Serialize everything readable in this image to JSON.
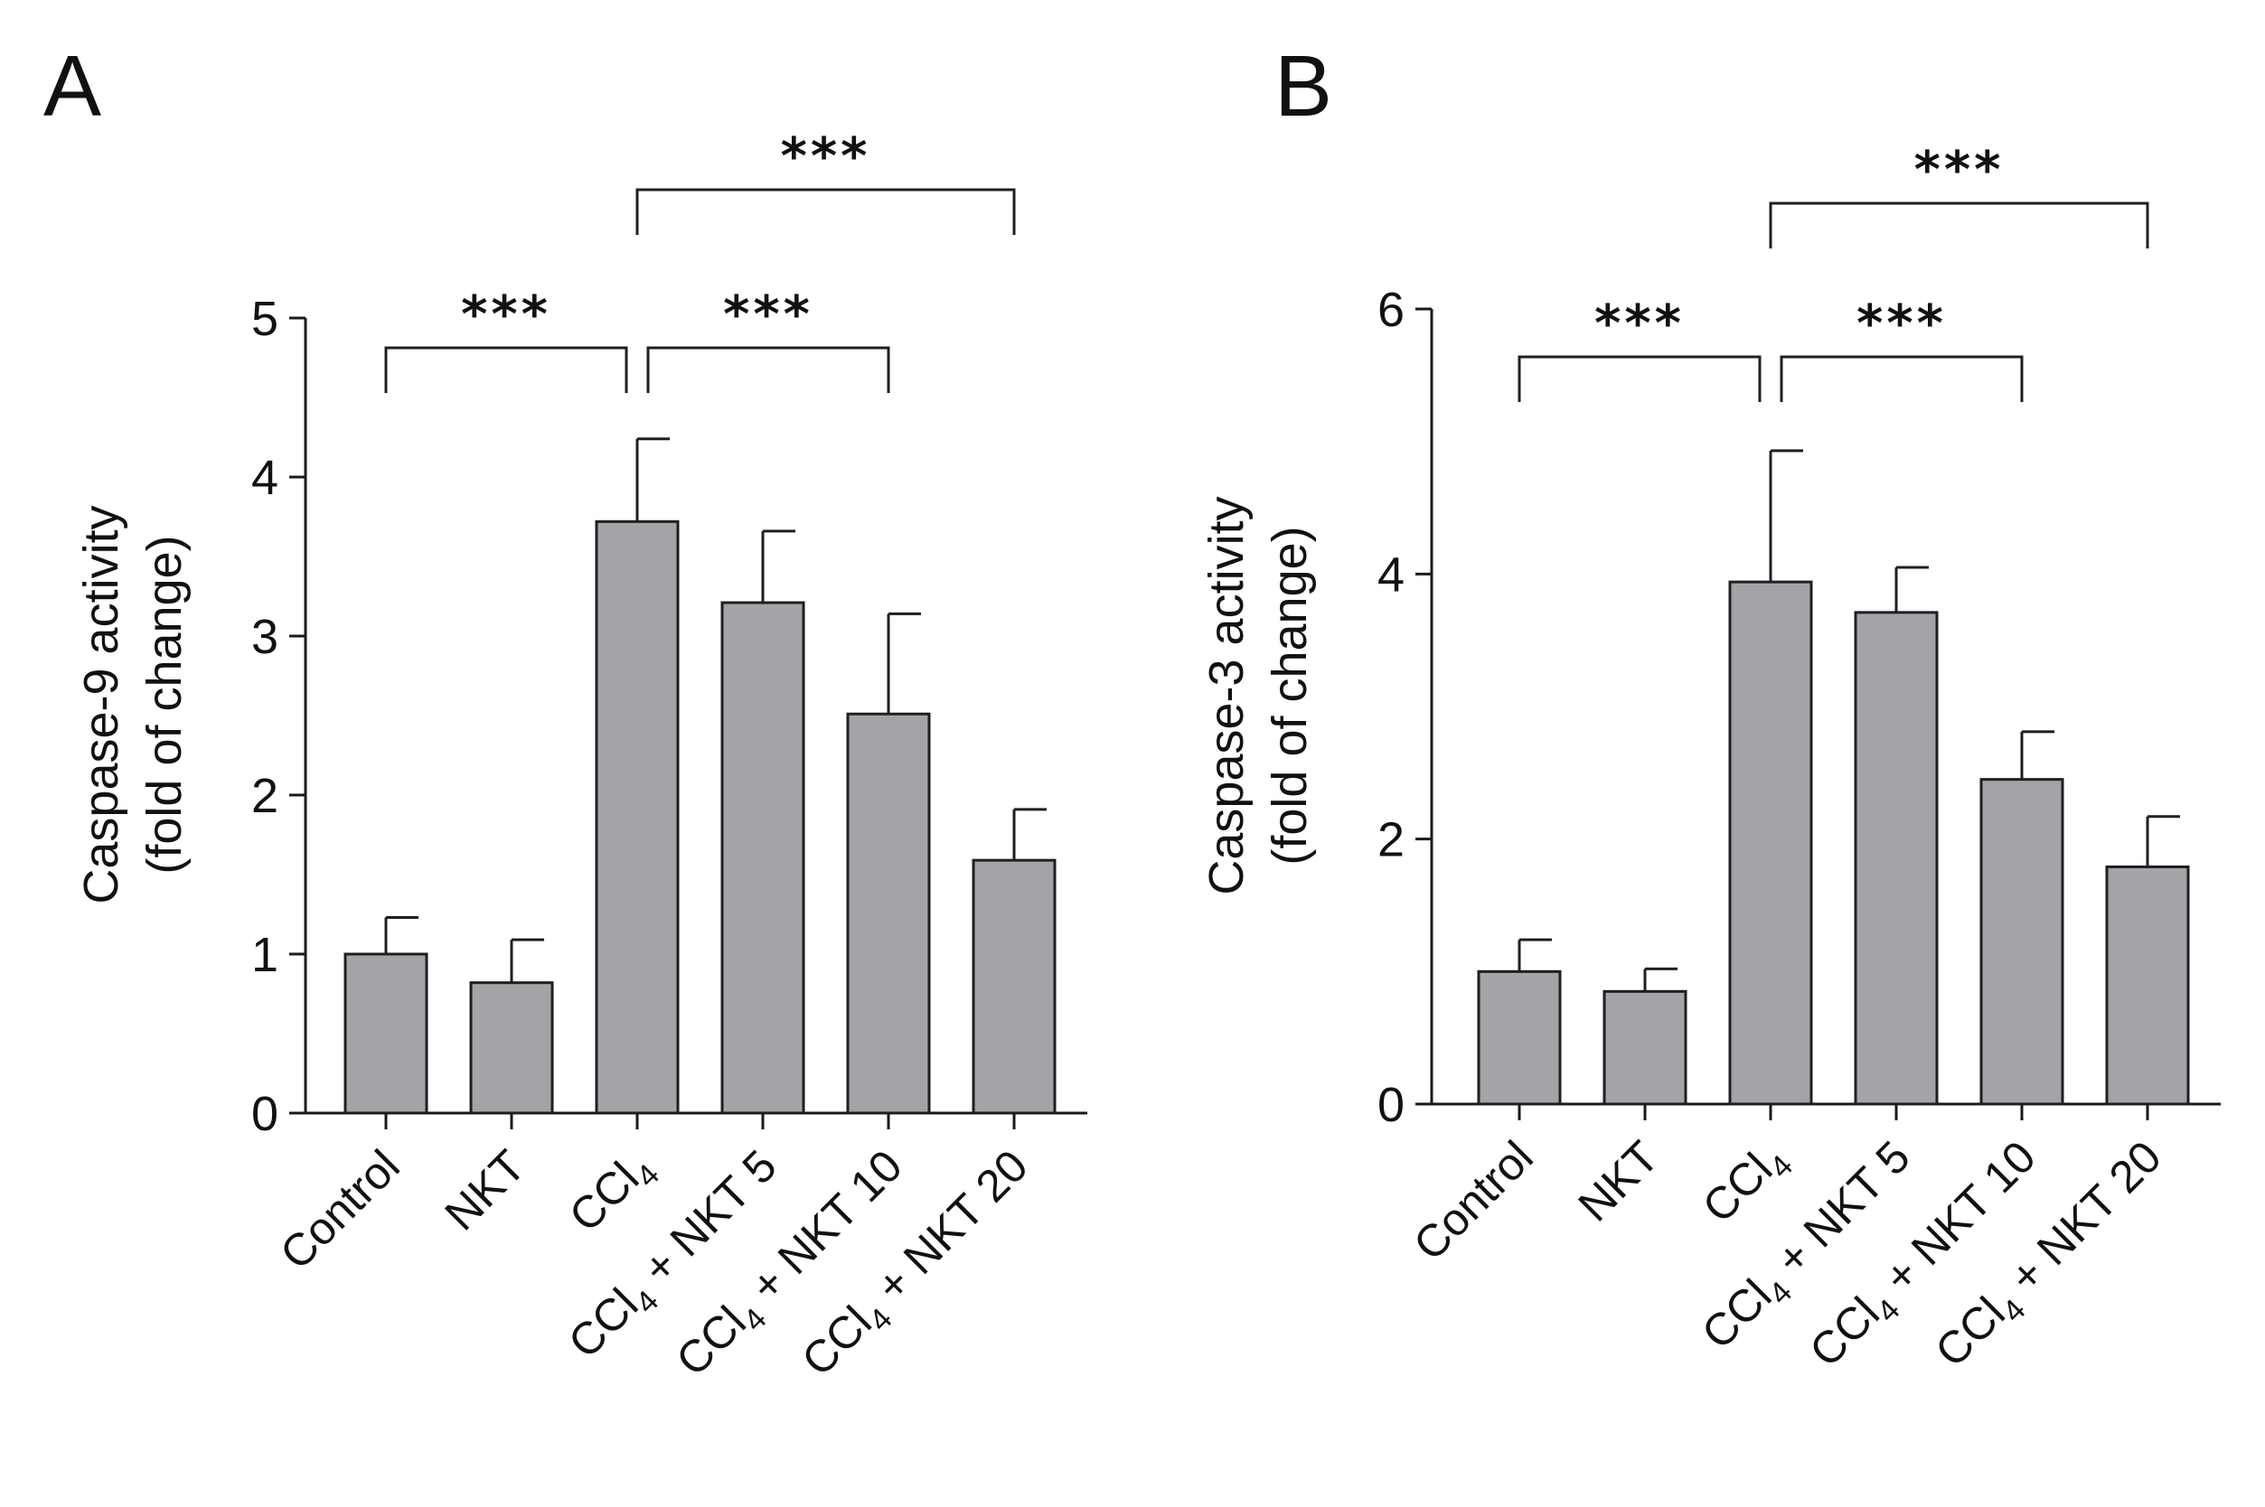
{
  "chart_data": [
    {
      "type": "bar",
      "panel": "A",
      "ylabel_line1": "Caspase-9 activity",
      "ylabel_line2": "(fold of change)",
      "ylim": [
        0,
        5
      ],
      "yticks": [
        "0",
        "1",
        "2",
        "3",
        "4",
        "5"
      ],
      "categories": [
        {
          "main": "Control",
          "sub": "",
          "suffix": ""
        },
        {
          "main": "NKT",
          "sub": "",
          "suffix": ""
        },
        {
          "main": "CCl",
          "sub": "4",
          "suffix": ""
        },
        {
          "main": "CCl",
          "sub": "4",
          "suffix": " + NKT 5"
        },
        {
          "main": "CCl",
          "sub": "4",
          "suffix": " + NKT 10"
        },
        {
          "main": "CCl",
          "sub": "4",
          "suffix": " + NKT 20"
        }
      ],
      "values": [
        1.0,
        0.82,
        3.72,
        3.21,
        2.51,
        1.59
      ],
      "errors": [
        0.23,
        0.27,
        0.52,
        0.45,
        0.63,
        0.32
      ],
      "significance": [
        {
          "from": 0,
          "to": 2,
          "label": "***",
          "level": 1
        },
        {
          "from": 2,
          "to": 4,
          "label": "***",
          "level": 1
        },
        {
          "from": 2,
          "to": 5,
          "label": "***",
          "level": 2
        }
      ]
    },
    {
      "type": "bar",
      "panel": "B",
      "ylabel_line1": "Caspase-3 activity",
      "ylabel_line2": "(fold of change)",
      "ylim": [
        0,
        6
      ],
      "yticks": [
        "0",
        "2",
        "4",
        "6"
      ],
      "categories": [
        {
          "main": "Control",
          "sub": "",
          "suffix": ""
        },
        {
          "main": "NKT",
          "sub": "",
          "suffix": ""
        },
        {
          "main": "CCl",
          "sub": "4",
          "suffix": ""
        },
        {
          "main": "CCl",
          "sub": "4",
          "suffix": " + NKT 5"
        },
        {
          "main": "CCl",
          "sub": "4",
          "suffix": " + NKT 10"
        },
        {
          "main": "CCl",
          "sub": "4",
          "suffix": " + NKT 20"
        }
      ],
      "values": [
        1.0,
        0.85,
        3.94,
        3.71,
        2.45,
        1.79
      ],
      "errors": [
        0.24,
        0.17,
        0.99,
        0.34,
        0.36,
        0.38
      ],
      "significance": [
        {
          "from": 0,
          "to": 2,
          "label": "***",
          "level": 1
        },
        {
          "from": 2,
          "to": 4,
          "label": "***",
          "level": 1
        },
        {
          "from": 2,
          "to": 5,
          "label": "***",
          "level": 2
        }
      ]
    }
  ]
}
